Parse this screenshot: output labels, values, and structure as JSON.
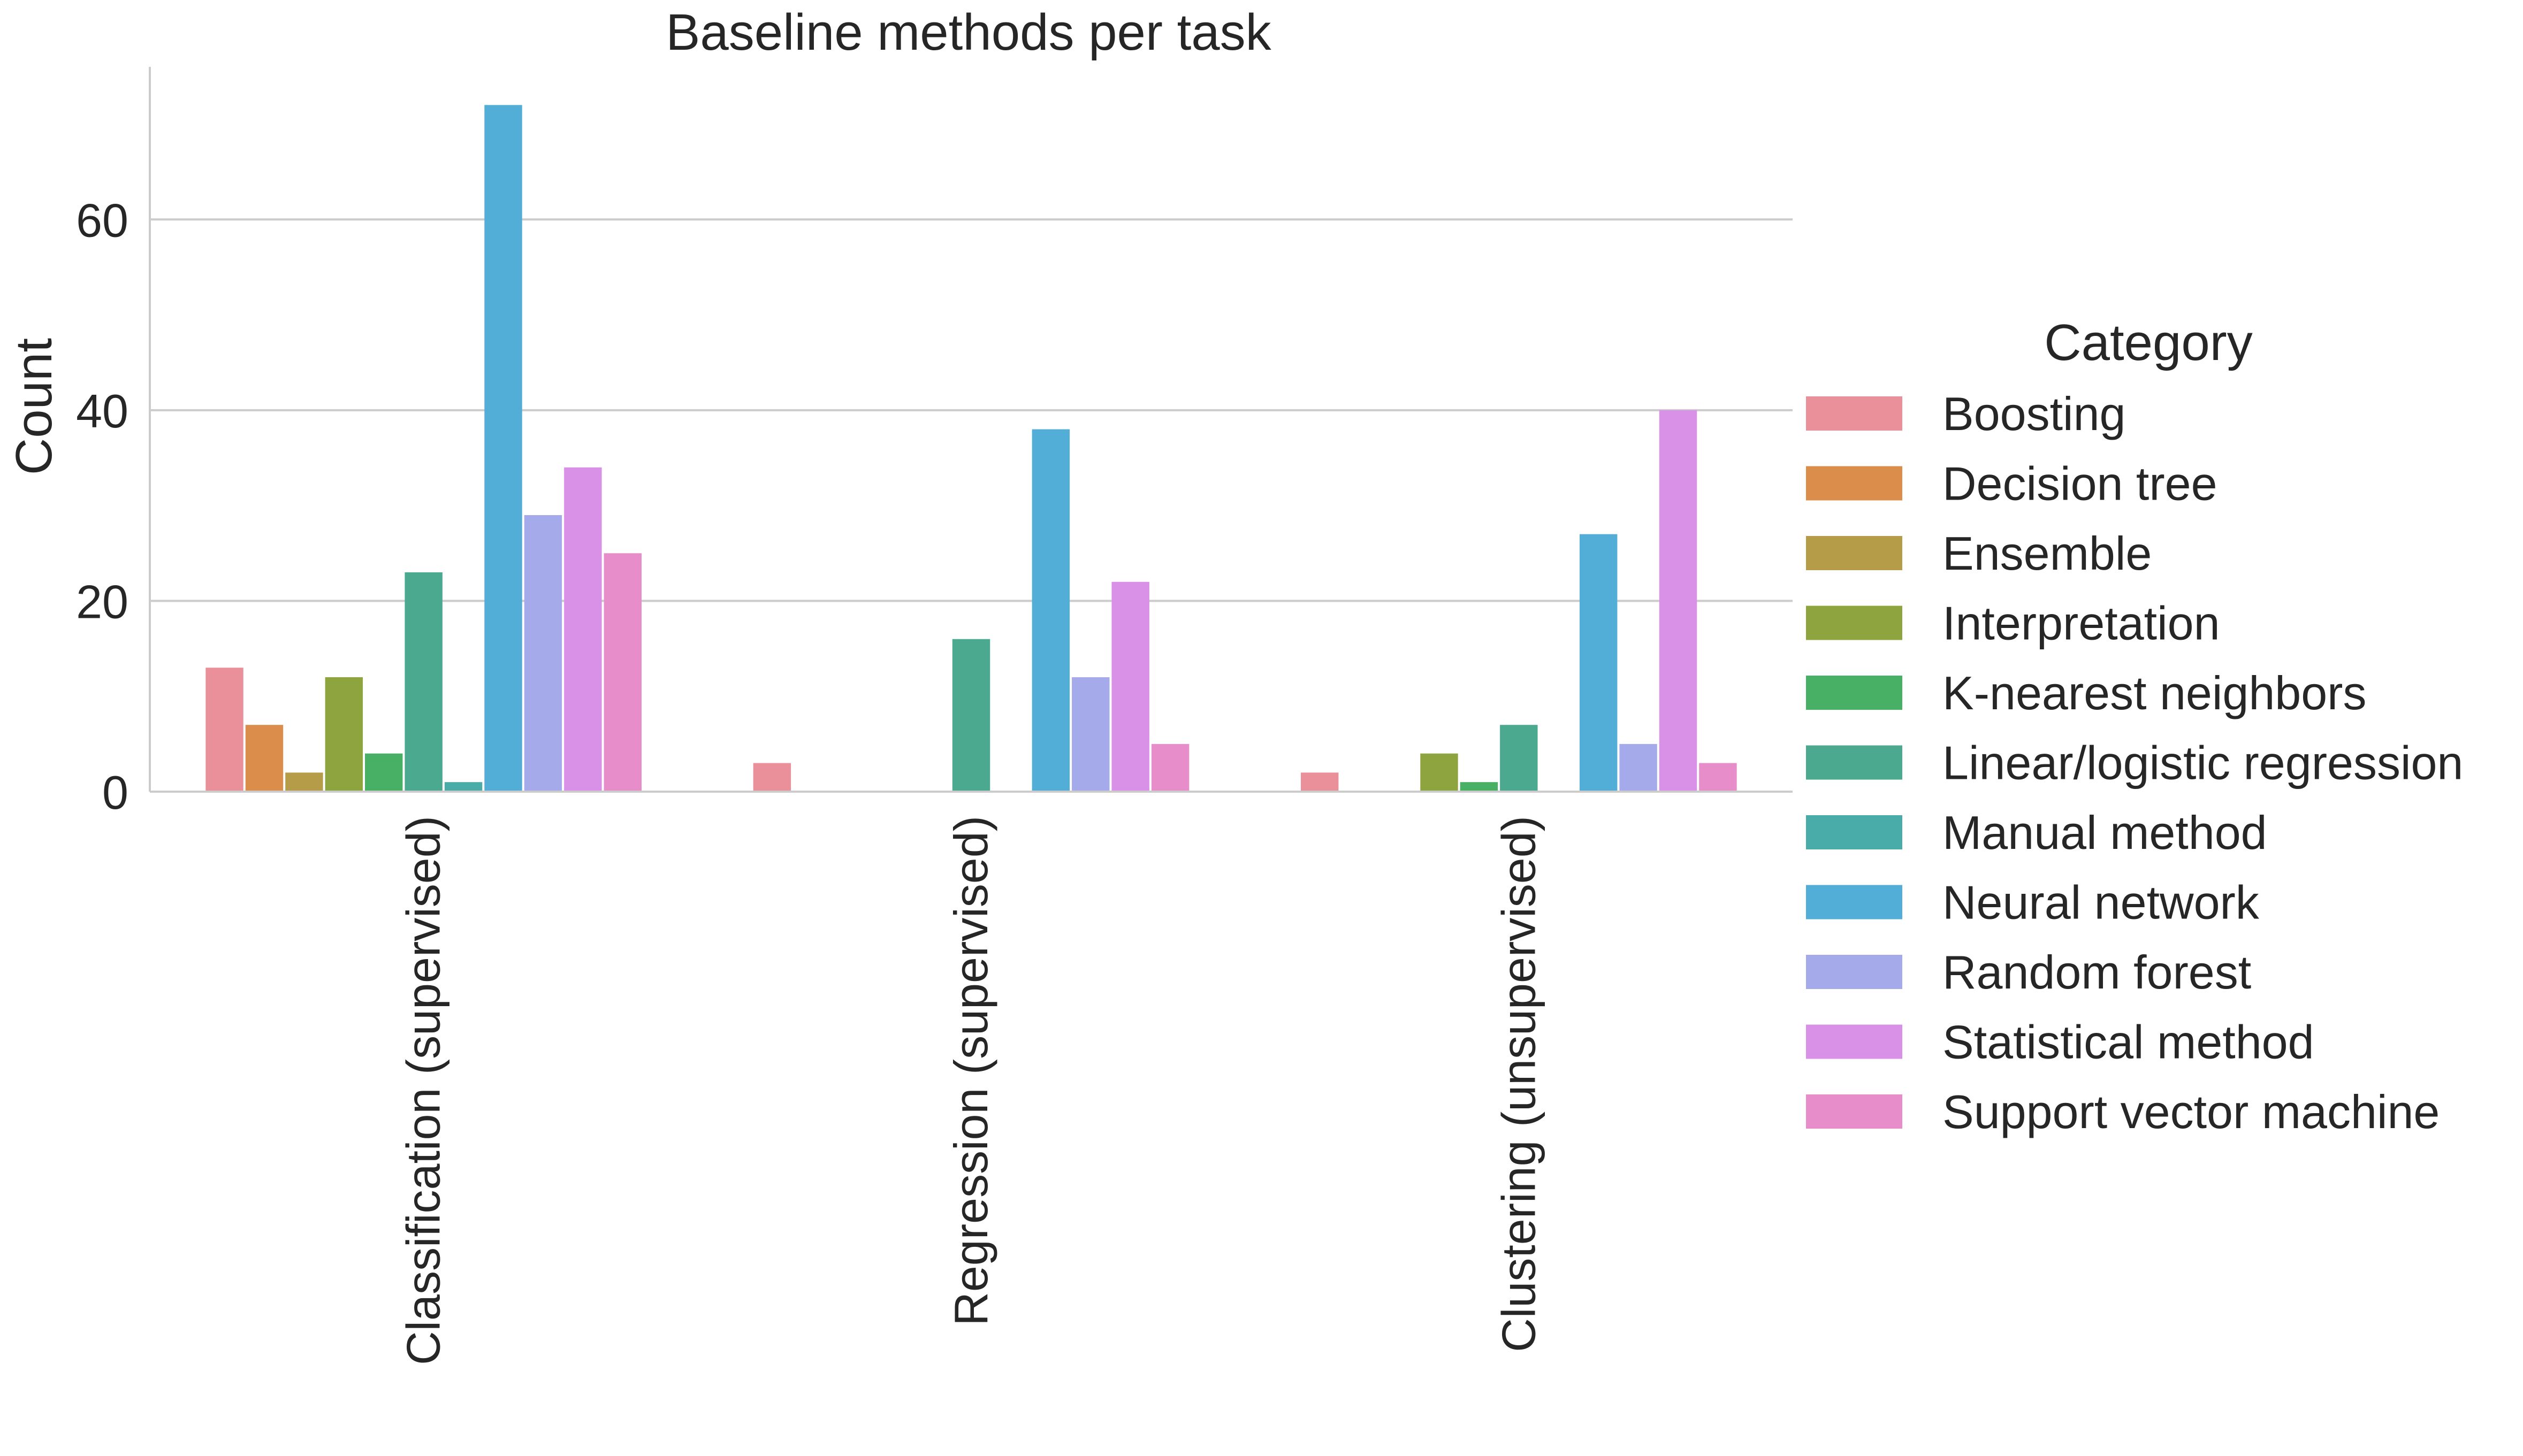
{
  "chart_data": {
    "type": "bar",
    "title": "Baseline methods per task",
    "xlabel": "",
    "ylabel": "Count",
    "ylim": [
      0,
      76
    ],
    "yticks": [
      0,
      20,
      40,
      60
    ],
    "grid": "horizontal",
    "legend_title": "Category",
    "legend_position": "right",
    "categories": [
      "Classification (supervised)",
      "Regression (supervised)",
      "Clustering (unsupervised)"
    ],
    "series": [
      {
        "name": "Boosting",
        "color": "#ea909a",
        "values": [
          13,
          3,
          2
        ]
      },
      {
        "name": "Decision tree",
        "color": "#db8e4c",
        "values": [
          7,
          0,
          0
        ]
      },
      {
        "name": "Ensemble",
        "color": "#b59c48",
        "values": [
          2,
          0,
          0
        ]
      },
      {
        "name": "Interpretation",
        "color": "#8da43f",
        "values": [
          12,
          0,
          4
        ]
      },
      {
        "name": "K-nearest neighbors",
        "color": "#47b064",
        "values": [
          4,
          0,
          1
        ]
      },
      {
        "name": "Linear/logistic regression",
        "color": "#4aa98e",
        "values": [
          23,
          16,
          7
        ]
      },
      {
        "name": "Manual method",
        "color": "#4aaca9",
        "values": [
          1,
          0,
          0
        ]
      },
      {
        "name": "Neural network",
        "color": "#52aed6",
        "values": [
          72,
          38,
          27
        ]
      },
      {
        "name": "Random forest",
        "color": "#a5aaea",
        "values": [
          29,
          12,
          5
        ]
      },
      {
        "name": "Statistical method",
        "color": "#d891e6",
        "values": [
          34,
          22,
          40
        ]
      },
      {
        "name": "Support vector machine",
        "color": "#e78dc9",
        "values": [
          25,
          5,
          3
        ]
      }
    ]
  }
}
